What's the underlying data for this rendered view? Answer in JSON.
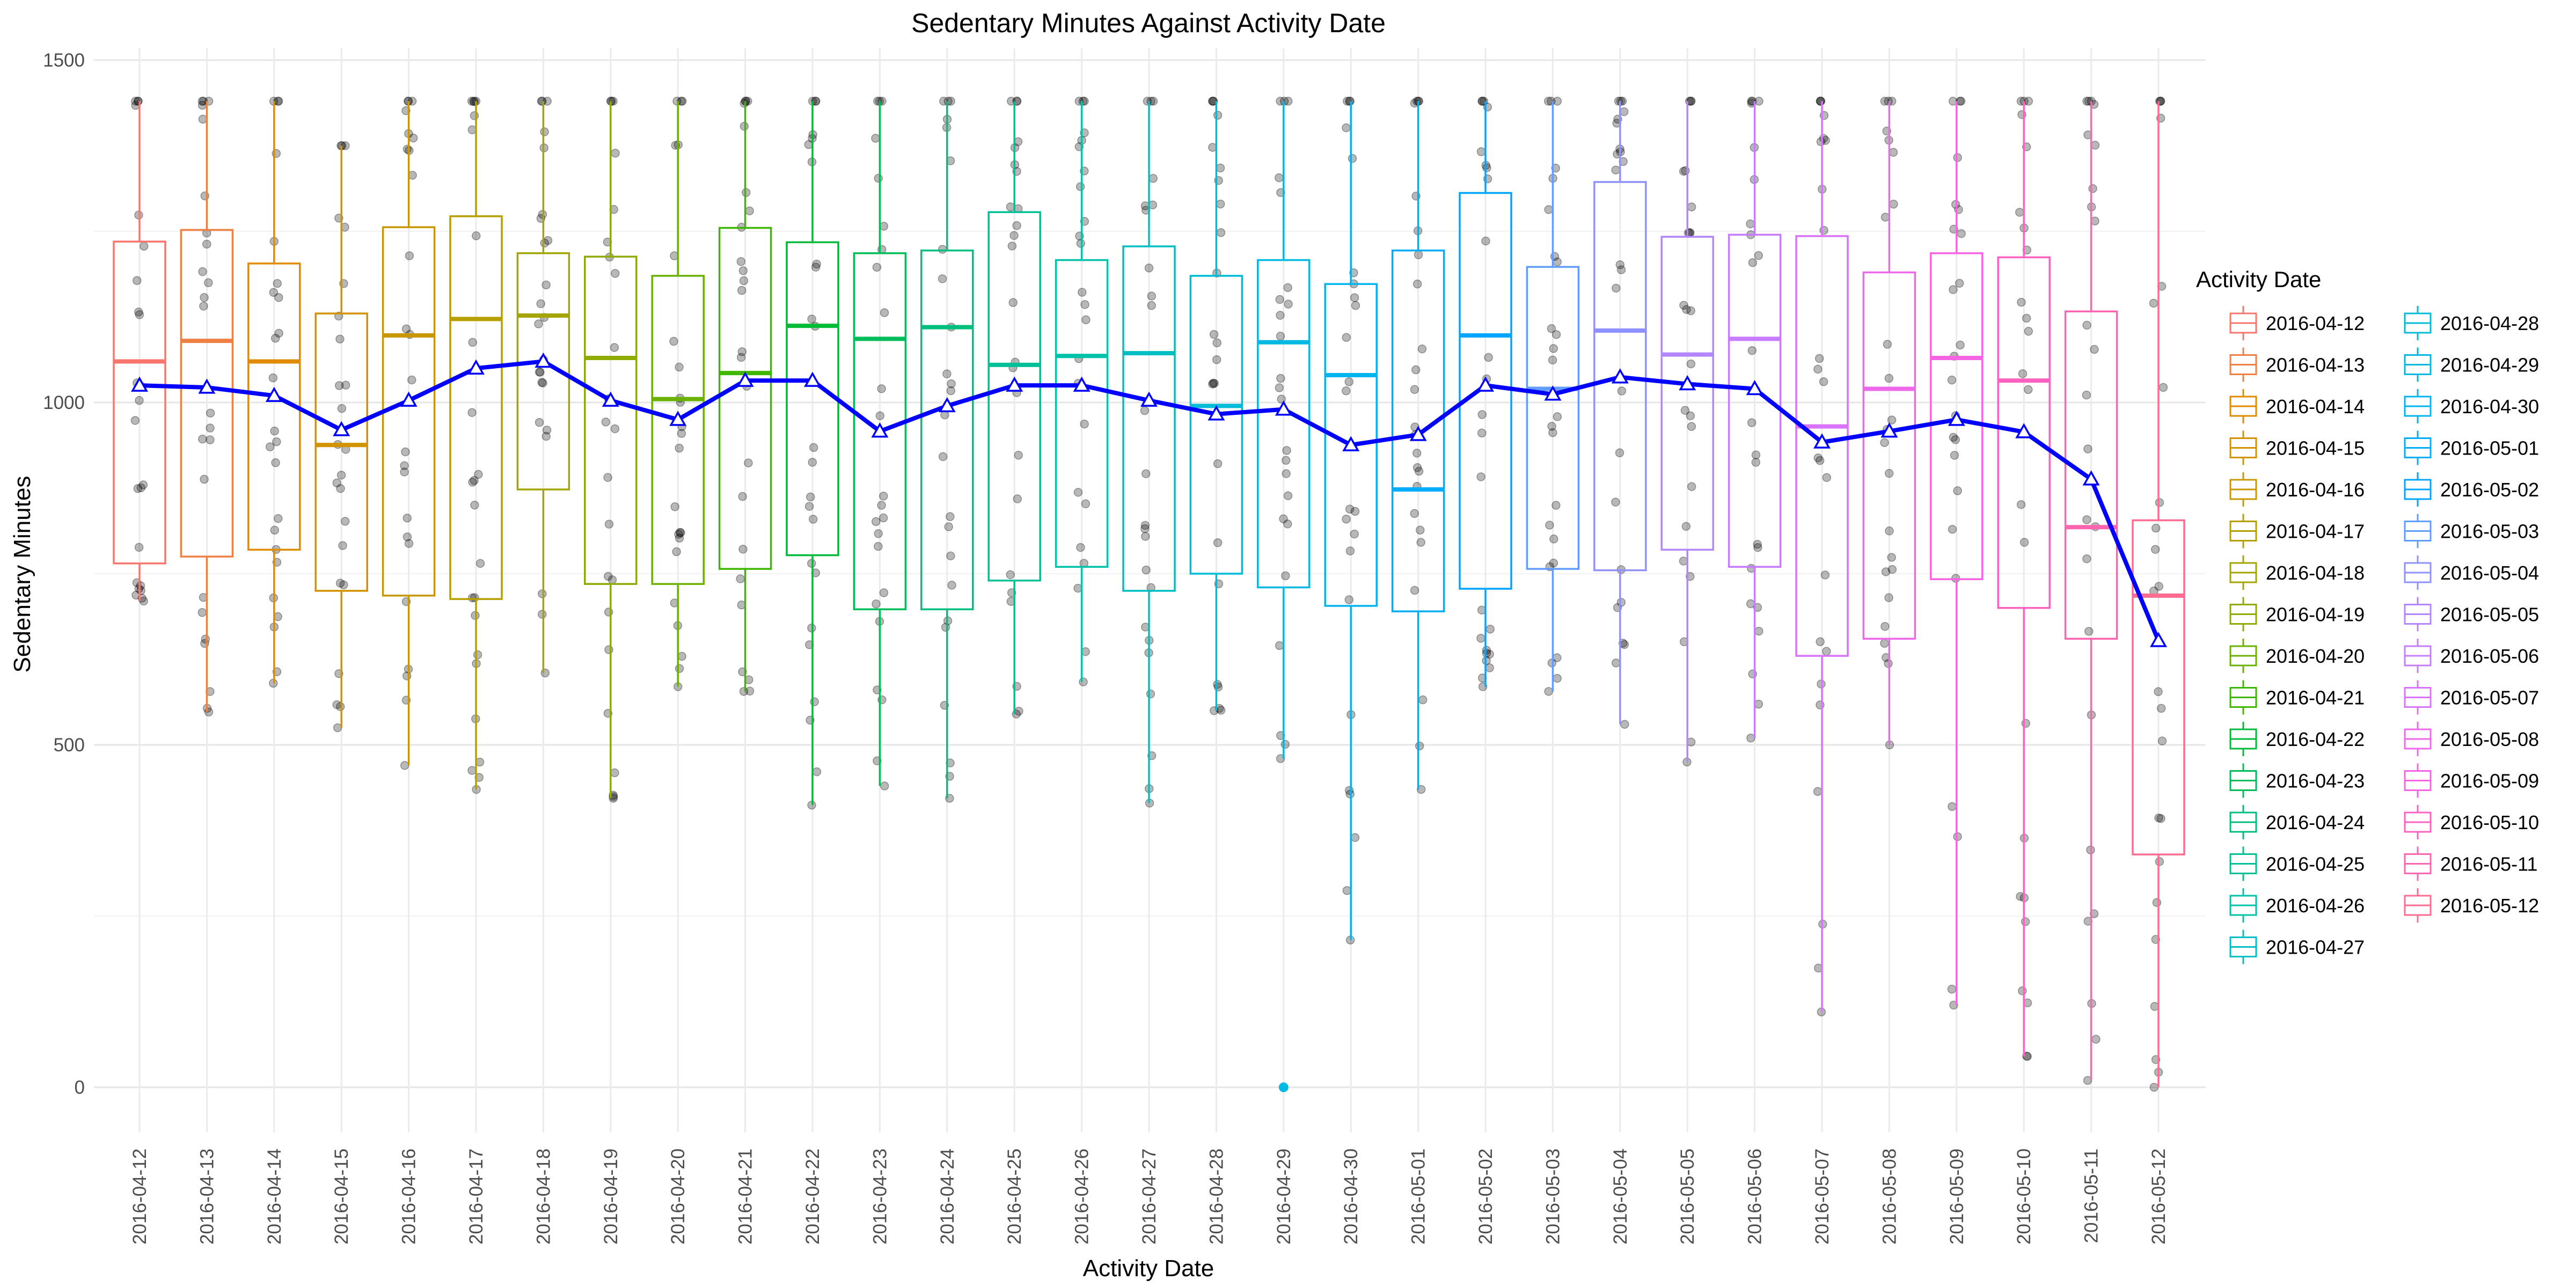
{
  "chart_data": {
    "type": "box",
    "title": "Sedentary Minutes Against Activity Date",
    "xlabel": "Activity Date",
    "ylabel": "Sedentary Minutes",
    "ylim": [
      -70,
      1500
    ],
    "yticks": [
      0,
      500,
      1000,
      1500
    ],
    "grid": true,
    "legend": {
      "title": "Activity Date",
      "position": "right",
      "columns": 2
    },
    "categories": [
      "2016-04-12",
      "2016-04-13",
      "2016-04-14",
      "2016-04-15",
      "2016-04-16",
      "2016-04-17",
      "2016-04-18",
      "2016-04-19",
      "2016-04-20",
      "2016-04-21",
      "2016-04-22",
      "2016-04-23",
      "2016-04-24",
      "2016-04-25",
      "2016-04-26",
      "2016-04-27",
      "2016-04-28",
      "2016-04-29",
      "2016-04-30",
      "2016-05-01",
      "2016-05-02",
      "2016-05-03",
      "2016-05-04",
      "2016-05-05",
      "2016-05-06",
      "2016-05-07",
      "2016-05-08",
      "2016-05-09",
      "2016-05-10",
      "2016-05-11",
      "2016-05-12"
    ],
    "colors": [
      "#F8766D",
      "#EE8044",
      "#E08B00",
      "#D39200",
      "#C99800",
      "#B79F00",
      "#A3A500",
      "#8DAB00",
      "#6BB100",
      "#3DB700",
      "#00BA38",
      "#00BC59",
      "#00BF7D",
      "#00C097",
      "#00C1AA",
      "#00BFC4",
      "#00BCD8",
      "#00B9E3",
      "#00B4F0",
      "#00ADFA",
      "#00A5FF",
      "#619CFF",
      "#8F91FF",
      "#B385FF",
      "#C77CFF",
      "#DB72FB",
      "#EF67EB",
      "#F564E3",
      "#FF61C3",
      "#FF64B0",
      "#FF6C91"
    ],
    "boxes": [
      {
        "min": 710,
        "q1": 765,
        "median": 1060,
        "q3": 1235,
        "max": 1440
      },
      {
        "min": 548,
        "q1": 775,
        "median": 1090,
        "q3": 1252,
        "max": 1440
      },
      {
        "min": 590,
        "q1": 785,
        "median": 1060,
        "q3": 1203,
        "max": 1440
      },
      {
        "min": 525,
        "q1": 725,
        "median": 938,
        "q3": 1130,
        "max": 1375
      },
      {
        "min": 470,
        "q1": 718,
        "median": 1098,
        "q3": 1256,
        "max": 1440
      },
      {
        "min": 435,
        "q1": 713,
        "median": 1122,
        "q3": 1272,
        "max": 1440
      },
      {
        "min": 605,
        "q1": 873,
        "median": 1127,
        "q3": 1218,
        "max": 1440
      },
      {
        "min": 422,
        "q1": 735,
        "median": 1065,
        "q3": 1213,
        "max": 1440
      },
      {
        "min": 585,
        "q1": 735,
        "median": 1005,
        "q3": 1185,
        "max": 1440
      },
      {
        "min": 578,
        "q1": 757,
        "median": 1043,
        "q3": 1255,
        "max": 1440
      },
      {
        "min": 412,
        "q1": 777,
        "median": 1112,
        "q3": 1234,
        "max": 1440
      },
      {
        "min": 440,
        "q1": 698,
        "median": 1093,
        "q3": 1218,
        "max": 1440
      },
      {
        "min": 422,
        "q1": 698,
        "median": 1110,
        "q3": 1222,
        "max": 1440
      },
      {
        "min": 545,
        "q1": 740,
        "median": 1055,
        "q3": 1278,
        "max": 1440
      },
      {
        "min": 592,
        "q1": 760,
        "median": 1068,
        "q3": 1208,
        "max": 1440
      },
      {
        "min": 415,
        "q1": 725,
        "median": 1072,
        "q3": 1228,
        "max": 1440
      },
      {
        "min": 550,
        "q1": 750,
        "median": 995,
        "q3": 1185,
        "max": 1440
      },
      {
        "min": 480,
        "q1": 730,
        "median": 1088,
        "q3": 1208,
        "max": 1440
      },
      {
        "min": 215,
        "q1": 703,
        "median": 1040,
        "q3": 1173,
        "max": 1440
      },
      {
        "min": 435,
        "q1": 695,
        "median": 873,
        "q3": 1222,
        "max": 1440
      },
      {
        "min": 585,
        "q1": 728,
        "median": 1098,
        "q3": 1306,
        "max": 1440
      },
      {
        "min": 578,
        "q1": 757,
        "median": 1020,
        "q3": 1198,
        "max": 1440
      },
      {
        "min": 530,
        "q1": 755,
        "median": 1105,
        "q3": 1322,
        "max": 1440
      },
      {
        "min": 475,
        "q1": 785,
        "median": 1070,
        "q3": 1242,
        "max": 1440
      },
      {
        "min": 510,
        "q1": 760,
        "median": 1093,
        "q3": 1245,
        "max": 1440
      },
      {
        "min": 110,
        "q1": 630,
        "median": 965,
        "q3": 1243,
        "max": 1440
      },
      {
        "min": 500,
        "q1": 655,
        "median": 1020,
        "q3": 1190,
        "max": 1440
      },
      {
        "min": 120,
        "q1": 742,
        "median": 1065,
        "q3": 1218,
        "max": 1440
      },
      {
        "min": 45,
        "q1": 700,
        "median": 1032,
        "q3": 1212,
        "max": 1440
      },
      {
        "min": 10,
        "q1": 655,
        "median": 818,
        "q3": 1133,
        "max": 1440
      },
      {
        "min": 0,
        "q1": 340,
        "median": 718,
        "q3": 828,
        "max": 1440
      }
    ],
    "outliers": [
      {
        "category": "2016-04-29",
        "value": 0
      }
    ],
    "mean_line": {
      "color": "#0000FF",
      "values": [
        1025,
        1022,
        1010,
        960,
        1003,
        1050,
        1060,
        1003,
        975,
        1032,
        1032,
        958,
        995,
        1025,
        1025,
        1003,
        983,
        990,
        938,
        953,
        1025,
        1012,
        1037,
        1027,
        1020,
        942,
        958,
        975,
        957,
        888,
        652
      ]
    }
  }
}
